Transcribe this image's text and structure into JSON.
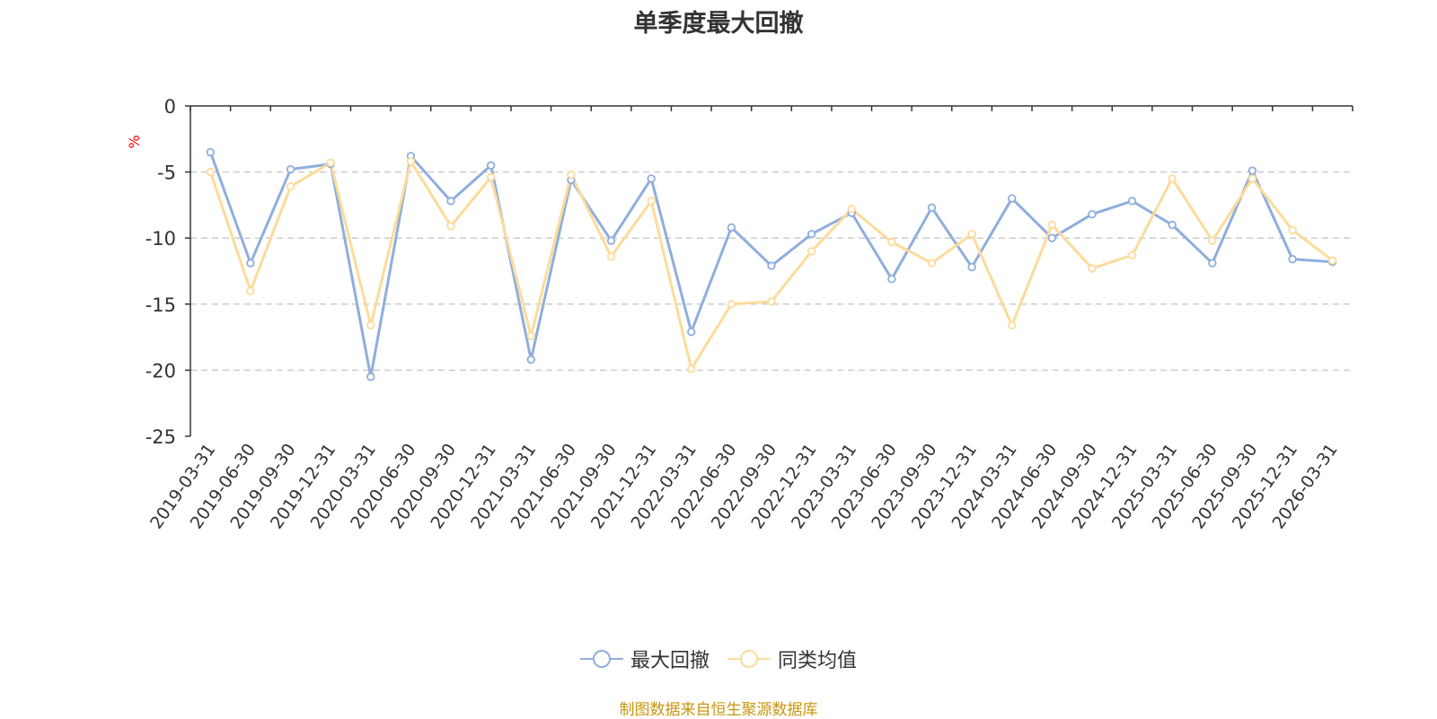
{
  "chart_data": {
    "type": "line",
    "title": "单季度最大回撤",
    "ylabel": "%",
    "ylim": [
      -25,
      0
    ],
    "yticks": [
      0,
      -5,
      -10,
      -15,
      -20,
      -25
    ],
    "grid": true,
    "legend_position": "bottom",
    "categories": [
      "2019-03-31",
      "2019-06-30",
      "2019-09-30",
      "2019-12-31",
      "2020-03-31",
      "2020-06-30",
      "2020-09-30",
      "2020-12-31",
      "2021-03-31",
      "2021-06-30",
      "2021-09-30",
      "2021-12-31",
      "2022-03-31",
      "2022-06-30",
      "2022-09-30",
      "2022-12-31",
      "2023-03-31",
      "2023-06-30",
      "2023-09-30",
      "2023-12-31",
      "2024-03-31",
      "2024-06-30",
      "2024-09-30",
      "2024-12-31",
      "2025-03-31",
      "2025-06-30",
      "2025-09-30",
      "2025-12-31",
      "2026-03-31"
    ],
    "series": [
      {
        "name": "最大回撤",
        "color": "#8FAEDC",
        "values": [
          -3.5,
          -11.9,
          -4.8,
          -4.4,
          -20.5,
          -3.8,
          -7.2,
          -4.5,
          -19.2,
          -5.6,
          -10.2,
          -5.5,
          -17.1,
          -9.2,
          -12.1,
          -9.7,
          -8.1,
          -13.1,
          -7.7,
          -12.2,
          -7.0,
          -10.0,
          -8.2,
          -7.2,
          -9.0,
          -11.9,
          -4.9,
          -11.6,
          -11.8
        ]
      },
      {
        "name": "同类均值",
        "color": "#FCDB9B",
        "values": [
          -5.0,
          -14.0,
          -6.1,
          -4.3,
          -16.6,
          -4.2,
          -9.1,
          -5.4,
          -17.4,
          -5.2,
          -11.4,
          -7.2,
          -19.9,
          -15.0,
          -14.8,
          -11.0,
          -7.8,
          -10.3,
          -11.9,
          -9.7,
          -16.6,
          -9.0,
          -12.3,
          -11.3,
          -5.5,
          -10.2,
          -5.5,
          -9.4,
          -11.7
        ]
      }
    ]
  },
  "source_text": "制图数据来自恒生聚源数据库",
  "colors": {
    "axis": "#333333",
    "grid": "#CCCCCC",
    "unit": "#FF0000",
    "source": "#C8960F"
  }
}
